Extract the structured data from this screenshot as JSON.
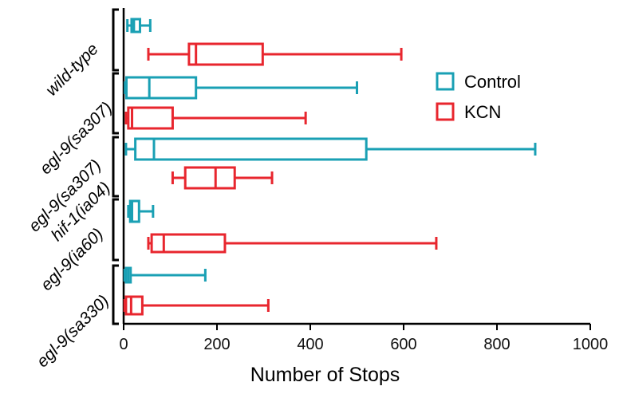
{
  "chart_data": {
    "type": "boxplot",
    "orientation": "horizontal",
    "xlabel": "Number of Stops",
    "xlim": [
      0,
      1000
    ],
    "xticks": [
      0,
      200,
      400,
      600,
      800,
      1000
    ],
    "grid": false,
    "legend": {
      "position": "top-right"
    },
    "colors": {
      "Control": "#1aa0b4",
      "KCN": "#e8262e",
      "axis": "#000000"
    },
    "series": [
      {
        "name": "Control",
        "color": "#1aa0b4"
      },
      {
        "name": "KCN",
        "color": "#e8262e"
      }
    ],
    "groups": [
      {
        "label": "wild-type",
        "boxes": [
          {
            "series": "Control",
            "min": 8,
            "q1": 17,
            "median": 22,
            "q3": 35,
            "max": 57
          },
          {
            "series": "KCN",
            "min": 53,
            "q1": 140,
            "median": 155,
            "q3": 298,
            "max": 595
          }
        ]
      },
      {
        "label": "egl-9(sa307)",
        "boxes": [
          {
            "series": "Control",
            "min": 3,
            "q1": 6,
            "median": 55,
            "q3": 155,
            "max": 500
          },
          {
            "series": "KCN",
            "min": 5,
            "q1": 10,
            "median": 18,
            "q3": 105,
            "max": 390
          }
        ]
      },
      {
        "label": "egl-9(sa307)\nhif-1(ia04)",
        "boxes": [
          {
            "series": "Control",
            "min": 5,
            "q1": 25,
            "median": 65,
            "q3": 520,
            "max": 882
          },
          {
            "series": "KCN",
            "min": 105,
            "q1": 132,
            "median": 197,
            "q3": 238,
            "max": 318
          }
        ]
      },
      {
        "label": "egl-9(ia60)",
        "boxes": [
          {
            "series": "Control",
            "min": 10,
            "q1": 14,
            "median": 18,
            "q3": 33,
            "max": 63
          },
          {
            "series": "KCN",
            "min": 53,
            "q1": 60,
            "median": 86,
            "q3": 217,
            "max": 670
          }
        ]
      },
      {
        "label": "egl-9(sa330)",
        "boxes": [
          {
            "series": "Control",
            "min": 2,
            "q1": 5,
            "median": 10,
            "q3": 15,
            "max": 175
          },
          {
            "series": "KCN",
            "min": 2,
            "q1": 5,
            "median": 16,
            "q3": 40,
            "max": 310
          }
        ]
      }
    ]
  }
}
